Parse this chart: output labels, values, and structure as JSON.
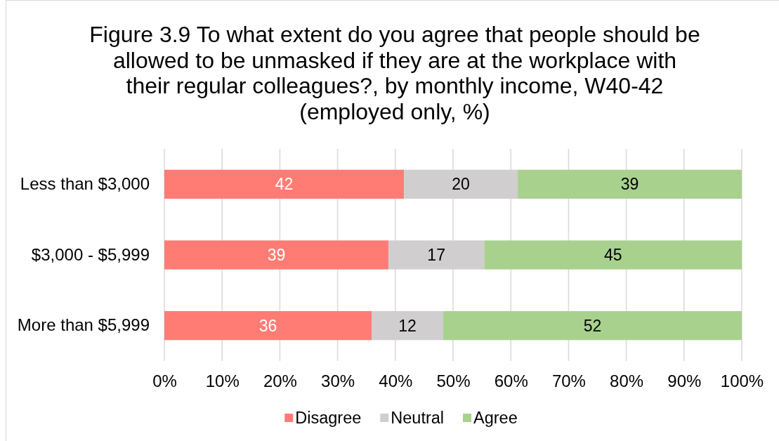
{
  "chart_data": {
    "type": "bar",
    "orientation": "horizontal",
    "stacked": true,
    "title": "Figure 3.9 To what extent do you agree that people should be allowed to be unmasked if they are at the workplace with their regular colleagues?, by monthly income, W40-42 (employed only, %)",
    "categories": [
      "Less than $3,000",
      "$3,000 - $5,999",
      "More than $5,999"
    ],
    "series": [
      {
        "name": "Disagree",
        "color": "#ff7c75",
        "values": [
          41.5,
          38.8,
          35.9
        ],
        "value_labels": [
          "42",
          "39",
          "36"
        ]
      },
      {
        "name": "Neutral",
        "color": "#d0cece",
        "values": [
          19.7,
          16.6,
          12.4
        ],
        "value_labels": [
          "20",
          "17",
          "12"
        ]
      },
      {
        "name": "Agree",
        "color": "#a9d18e",
        "values": [
          38.8,
          44.6,
          51.7
        ],
        "value_labels": [
          "39",
          "45",
          "52"
        ]
      }
    ],
    "xlim": [
      0,
      100
    ],
    "xticks": [
      {
        "value": 0,
        "label": "0%"
      },
      {
        "value": 10,
        "label": "10%"
      },
      {
        "value": 20,
        "label": "20%"
      },
      {
        "value": 30,
        "label": "30%"
      },
      {
        "value": 40,
        "label": "40%"
      },
      {
        "value": 50,
        "label": "50%"
      },
      {
        "value": 60,
        "label": "60%"
      },
      {
        "value": 70,
        "label": "70%"
      },
      {
        "value": 80,
        "label": "80%"
      },
      {
        "value": 90,
        "label": "90%"
      },
      {
        "value": 100,
        "label": "100%"
      }
    ],
    "grid": "x",
    "legend": "bottom"
  }
}
